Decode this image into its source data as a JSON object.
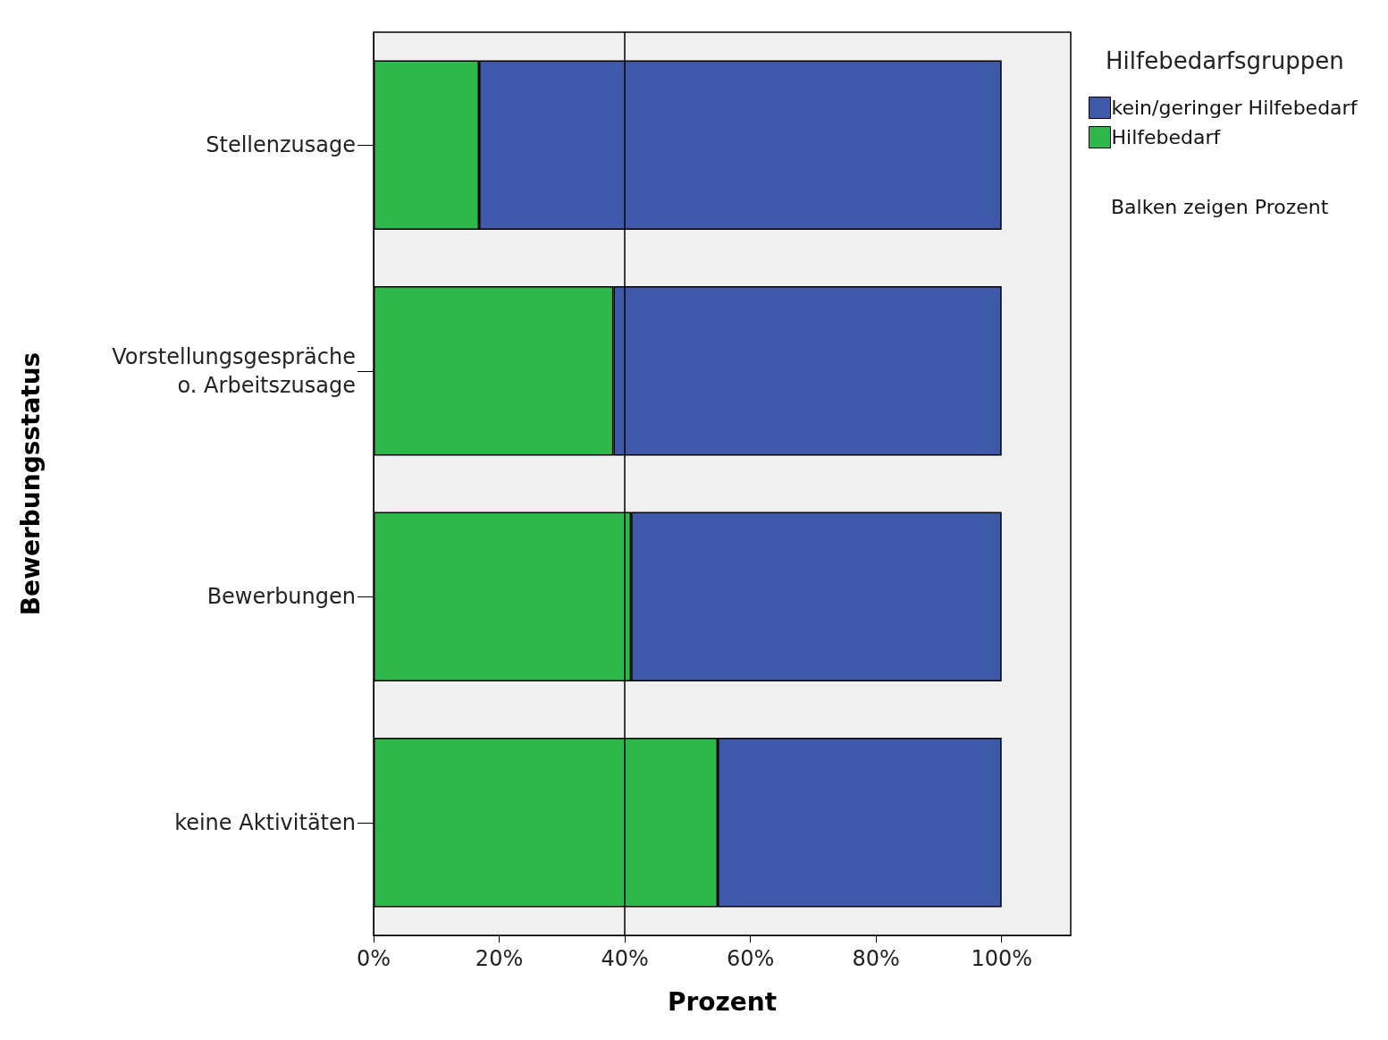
{
  "chart_data": {
    "type": "bar",
    "orientation": "horizontal",
    "stacked": true,
    "ylabel": "Bewerbungsstatus",
    "xlabel": "Prozent",
    "legend_title": "Hilfebedarfsgruppen",
    "legend": "top right",
    "grid": false,
    "annotations": [
      "Balken zeigen Prozent"
    ],
    "categories": [
      "Stellenzusage",
      "Vorstellungsgespräche\no. Arbeitszusage",
      "Bewerbungen",
      "keine Aktivitäten"
    ],
    "series": [
      {
        "name": "Hilfebedarf",
        "color": "#2eb84b",
        "values": [
          16.8,
          38.2,
          41.0,
          54.8
        ]
      },
      {
        "name": "kein/geringer Hilfebedarf",
        "color": "#3e58aa",
        "values": [
          83.2,
          61.8,
          59.0,
          45.2
        ]
      }
    ],
    "xlim": [
      0,
      111
    ],
    "xticks": [
      {
        "value": 0,
        "label": "0%"
      },
      {
        "value": 20,
        "label": "20%"
      },
      {
        "value": 40,
        "label": "40%"
      },
      {
        "value": 60,
        "label": "60%"
      },
      {
        "value": 80,
        "label": "80%"
      },
      {
        "value": 100,
        "label": "100%"
      }
    ],
    "ref_lines": [
      {
        "axis": "x",
        "value": 40,
        "label": null,
        "color": "#000000"
      }
    ]
  }
}
